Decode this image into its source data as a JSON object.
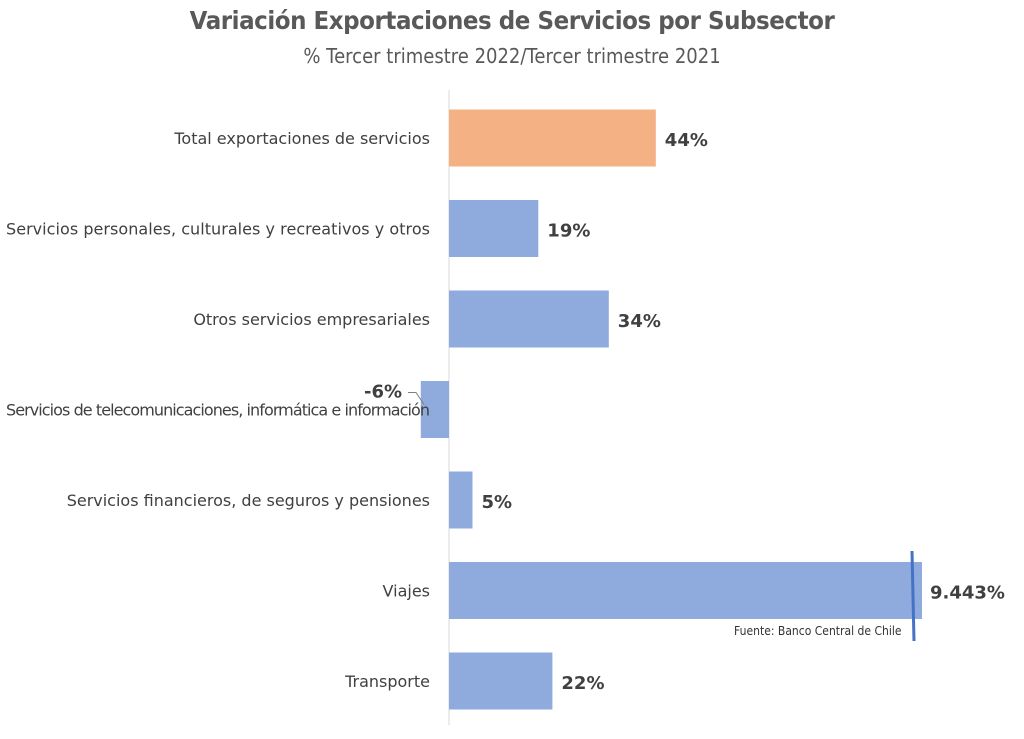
{
  "chart_data": {
    "type": "bar",
    "orientation": "horizontal",
    "title": "Variación Exportaciones de Servicios por Subsector",
    "subtitle": "% Tercer trimestre 2022/Tercer trimestre 2021",
    "categories": [
      "Total exportaciones de  servicios",
      "Servicios personales, culturales y recreativos y otros",
      "Otros servicios empresariales",
      "Servicios de telecomunicaciones, informática e información",
      "Servicios financieros, de seguros y pensiones",
      "Viajes",
      "Transporte"
    ],
    "values": [
      44,
      19,
      34,
      -6,
      5,
      9443,
      22
    ],
    "data_labels": [
      "44%",
      "19%",
      "34%",
      "-6%",
      "5%",
      "9.443%",
      "22%"
    ],
    "axis_break_category": "Viajes",
    "colors": {
      "highlight": "#F4B183",
      "default": "#8FAADC",
      "axis": "#D9D9D9",
      "break_line": "#4472C4"
    },
    "source_note": "Fuente: Banco Central de Chile"
  }
}
